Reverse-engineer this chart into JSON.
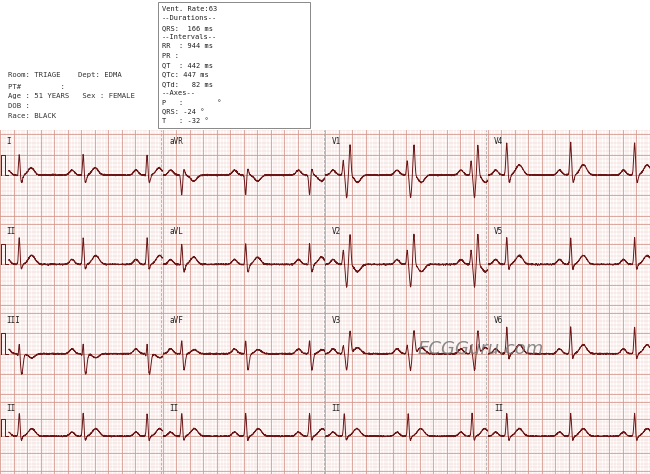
{
  "bg_color": "#f5e0da",
  "grid_major_color": "#d4968a",
  "grid_minor_color": "#e8c4bc",
  "ecg_line_color": "#6b1515",
  "header_bg": "#ffffff",
  "info_left": [
    "Room: TRIAGE    Dept: EDMA",
    "PT#         :",
    "Age : 51 YEARS   Sex : FEMALE",
    "DOB :",
    "Race: BLACK"
  ],
  "info_right": [
    "Vent. Rate:63",
    "--Durations--",
    "QRS:  166 ms",
    "--Intervals--",
    "RR  : 944 ms",
    "PR :",
    "QT  : 442 ms",
    "QTc: 447 ms",
    "QTd:   82 ms",
    "--Axes--",
    "P   :        °",
    "QRS: -24 °",
    "T   : -32 °"
  ],
  "lead_layout": [
    [
      "I",
      "aVR",
      "V1",
      "V4"
    ],
    [
      "II",
      "aVL",
      "V2",
      "V5"
    ],
    [
      "III",
      "aVF",
      "V3",
      "V6"
    ],
    [
      "II",
      "II",
      "II",
      "II"
    ]
  ],
  "watermark": "ECGGuru.com",
  "fig_width": 6.5,
  "fig_height": 4.74,
  "dpi": 100
}
